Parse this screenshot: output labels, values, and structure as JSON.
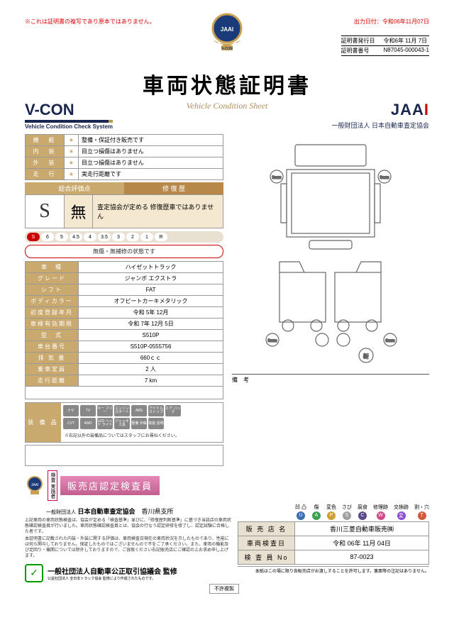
{
  "topLeft": "※これは証明書の複写であり原本ではありません。",
  "topRight": "出力日付：令和06年11月07日",
  "certMeta": {
    "issueDateLbl": "証明書発行日",
    "issueDate": "令和6年 11月 7日",
    "certNoLbl": "証明書番号",
    "certNo": "N87045-000043-1"
  },
  "title": "車両状態証明書",
  "subtitle": "Vehicle Condition Sheet",
  "vcon": {
    "big": "V-CON",
    "sub": "Vehicle Condition Check System"
  },
  "jaai": {
    "logo1": "JAA",
    "logo2": "I",
    "sub": "一般財団法人 日本自動車査定協会"
  },
  "stars": [
    {
      "hd": "機　能",
      "desc": "整備・保証付き販売です"
    },
    {
      "hd": "内　装",
      "desc": "目立つ損傷はありません"
    },
    {
      "hd": "外　装",
      "desc": "目立つ損傷はありません"
    },
    {
      "hd": "走　行",
      "desc": "実走行距離です"
    }
  ],
  "evalHd": {
    "l": "総合評価点",
    "r": "修 復 歴"
  },
  "evalS": "S",
  "evalMu": "無",
  "evalTxt": "査定協会が定める\n修復歴車ではありません",
  "scale": [
    "S",
    "6",
    "5",
    "4.5",
    "4",
    "3.5",
    "3",
    "2",
    "1",
    "R"
  ],
  "statusPill": "無傷・無補修の状態です",
  "spec": [
    {
      "hd": "車　種",
      "val": "ハイゼットトラック"
    },
    {
      "hd": "グレード",
      "val": "ジャンボ エクストラ"
    },
    {
      "hd": "シフト",
      "val": "FAT"
    },
    {
      "hd": "ボディカラー",
      "val": "オフビートカーキメタリック"
    },
    {
      "hd": "初度登録年月",
      "val": "令和 5年 12月"
    },
    {
      "hd": "車検有効期限",
      "val": "令和 7年 12月 5日"
    },
    {
      "hd": "型　式",
      "val": "S510P"
    },
    {
      "hd": "車台番号",
      "val": "S510P-0555756"
    },
    {
      "hd": "排 気 量",
      "val": "660ｃｃ"
    },
    {
      "hd": "乗車定員",
      "val": "2 人"
    },
    {
      "hd": "走行距離",
      "val": "7 km"
    }
  ],
  "equipHd": "装 備 品",
  "equipRow1": [
    "ナビ",
    "TV",
    "キー\nフリー",
    "エンジン\nスタート",
    "ABS",
    "アイドル\nストップ",
    "エア\nバック"
  ],
  "equipRow2": [
    "CVT",
    "4WD",
    "LED\nヘッド\nライト",
    "ジャッキ\n工具",
    "整備\n手帳",
    "取扱\n説明"
  ],
  "equipNote": "※右記以外の装備品についてはスタッフにお尋ねください。",
  "remarksLbl": "備　考",
  "certBadge": {
    "small": "検査\n実施者",
    "big": "販売店認定検査員"
  },
  "assoc": {
    "pre": "一般財団法人",
    "name": "日本自動車査定協会",
    "branch": "香川県支所"
  },
  "fine1": "上記車両の車両状態検査は、協会が定める「検査基準」並びに、「修復歴判断基準」に基づき当該店の車両状態確認検査員が行いました。車両状態確認検査員とは、協会の行なう認定研修を修了し、認定試験に合格した者です。",
  "fine2": "本証明書に記載された内装・外装に関する評価は、車両検査日現在の車両状況を示したものであり、性能には何ら関与しておりません。保証したものではございませんので不をご了承ください。また、車両の機能及び足回り・機関については除外しておりますので、ご容赦ください右記販売店にご確認の上お求め申し上げます。",
  "legend": [
    {
      "t": "凹 凸",
      "s": "U",
      "c": "#3a6fb0"
    },
    {
      "t": "傷",
      "s": "A",
      "c": "#3aa050"
    },
    {
      "t": "変色",
      "s": "P",
      "c": "#d0a030"
    },
    {
      "t": "さび",
      "s": "S",
      "c": "#a0a0a0"
    },
    {
      "t": "腐食",
      "s": "C",
      "c": "#5a4a8a"
    },
    {
      "t": "修理跡",
      "s": "W",
      "c": "#d04a8a"
    },
    {
      "t": "交換跡",
      "s": "変",
      "c": "#8a4ad0"
    },
    {
      "t": "割・穴",
      "s": "T",
      "c": "#d05a3a"
    }
  ],
  "info": [
    {
      "hd": "販 売 店 名",
      "val": "香川三菱自動車販売㈱"
    },
    {
      "hd": "車両検査日",
      "val": "令和 06年 11月 04日"
    },
    {
      "hd": "検 査 員 No",
      "val": "87-0023"
    }
  ],
  "supervise": {
    "t1": "一般社団法人自動車公正取引協議会 監修",
    "t2": "公益社団法人 全日本トラック協会 監修により作成されたものです。"
  },
  "footerNote": "本紙はこの場に限り各販売店がお渡しすることを許可します。裏面等の注記はありません。",
  "nocp": "不許複製",
  "colors": {
    "brand": "#c9a96e",
    "navy": "#1a2550",
    "red": "#c00"
  }
}
